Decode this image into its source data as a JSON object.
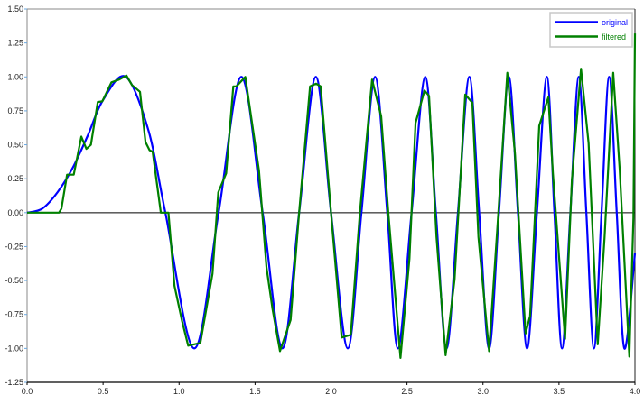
{
  "chart_data": {
    "type": "line",
    "title": "",
    "xlabel": "",
    "ylabel": "",
    "xlim": [
      0.0,
      4.0
    ],
    "ylim": [
      -1.25,
      1.5
    ],
    "xticks": [
      "0.0",
      "0.5",
      "1.0",
      "1.5",
      "2.0",
      "2.5",
      "3.0",
      "3.5",
      "4.0"
    ],
    "yticks": [
      "1.50",
      "1.25",
      "1.00",
      "0.75",
      "0.50",
      "0.25",
      "0.00",
      "-0.25",
      "-0.50",
      "-0.75",
      "-1.00",
      "-1.25"
    ],
    "grid": false,
    "zero_line": true,
    "legend": {
      "placement": "top-right",
      "entries": [
        "original",
        "filtered"
      ]
    },
    "series": [
      {
        "name": "original",
        "color": "#0000ff",
        "points": [
          [
            0,
            0
          ],
          [
            0.1,
            0.03
          ],
          [
            0.2,
            0.15
          ],
          [
            0.3,
            0.33
          ],
          [
            0.4,
            0.57
          ],
          [
            0.5,
            0.83
          ],
          [
            0.65,
            1.0
          ],
          [
            0.8,
            0.6
          ],
          [
            0.91,
            0
          ],
          [
            1.1,
            -1
          ],
          [
            1.26,
            0
          ],
          [
            1.41,
            1
          ],
          [
            1.55,
            0
          ],
          [
            1.68,
            -1
          ],
          [
            1.79,
            0
          ],
          [
            1.9,
            1
          ],
          [
            2.0,
            0
          ],
          [
            2.11,
            -1
          ],
          [
            2.2,
            0
          ],
          [
            2.29,
            1
          ],
          [
            2.37,
            0
          ],
          [
            2.44,
            -1
          ],
          [
            2.53,
            0
          ],
          [
            2.62,
            1
          ],
          [
            2.69,
            0
          ],
          [
            2.76,
            -1
          ],
          [
            2.835,
            0
          ],
          [
            2.91,
            1
          ],
          [
            2.975,
            0
          ],
          [
            3.04,
            -1
          ],
          [
            3.105,
            0
          ],
          [
            3.17,
            1
          ],
          [
            3.23,
            0
          ],
          [
            3.29,
            -1
          ],
          [
            3.355,
            0
          ],
          [
            3.42,
            1
          ],
          [
            3.47,
            0
          ],
          [
            3.52,
            -1
          ],
          [
            3.575,
            0
          ],
          [
            3.63,
            1
          ],
          [
            3.68,
            0
          ],
          [
            3.73,
            -1
          ],
          [
            3.78,
            0
          ],
          [
            3.83,
            1
          ],
          [
            3.88,
            0
          ],
          [
            3.93,
            -1
          ],
          [
            4.0,
            -0.3
          ]
        ]
      },
      {
        "name": "filtered",
        "color": "#008000",
        "points": [
          [
            0,
            0
          ],
          [
            0.21,
            0
          ],
          [
            0.226,
            0.03
          ],
          [
            0.263,
            0.28
          ],
          [
            0.307,
            0.28
          ],
          [
            0.357,
            0.56
          ],
          [
            0.39,
            0.47
          ],
          [
            0.42,
            0.5
          ],
          [
            0.465,
            0.815
          ],
          [
            0.495,
            0.82
          ],
          [
            0.555,
            0.96
          ],
          [
            0.605,
            0.98
          ],
          [
            0.654,
            1.01
          ],
          [
            0.69,
            0.94
          ],
          [
            0.743,
            0.89
          ],
          [
            0.779,
            0.52
          ],
          [
            0.806,
            0.46
          ],
          [
            0.826,
            0.45
          ],
          [
            0.88,
            0
          ],
          [
            0.93,
            0
          ],
          [
            0.97,
            -0.54
          ],
          [
            1.02,
            -0.8
          ],
          [
            1.06,
            -0.98
          ],
          [
            1.14,
            -0.96
          ],
          [
            1.22,
            -0.45
          ],
          [
            1.258,
            0.15
          ],
          [
            1.31,
            0.29
          ],
          [
            1.357,
            0.93
          ],
          [
            1.377,
            0.93
          ],
          [
            1.436,
            1.0
          ],
          [
            1.526,
            0.31
          ],
          [
            1.575,
            -0.4
          ],
          [
            1.615,
            -0.71
          ],
          [
            1.664,
            -1.02
          ],
          [
            1.734,
            -0.79
          ],
          [
            1.79,
            0
          ],
          [
            1.862,
            0.93
          ],
          [
            1.902,
            0.95
          ],
          [
            1.932,
            0.93
          ],
          [
            2.0,
            0
          ],
          [
            2.07,
            -0.92
          ],
          [
            2.13,
            -0.9
          ],
          [
            2.19,
            0
          ],
          [
            2.27,
            0.98
          ],
          [
            2.33,
            0.71
          ],
          [
            2.377,
            0
          ],
          [
            2.457,
            -1.07
          ],
          [
            2.516,
            -0.34
          ],
          [
            2.556,
            0.66
          ],
          [
            2.615,
            0.9
          ],
          [
            2.645,
            0.86
          ],
          [
            2.694,
            -0.18
          ],
          [
            2.754,
            -1.05
          ],
          [
            2.813,
            -0.49
          ],
          [
            2.883,
            0.87
          ],
          [
            2.93,
            0.81
          ],
          [
            2.97,
            -0.18
          ],
          [
            3.04,
            -1.02
          ],
          [
            3.1,
            -0.02
          ],
          [
            3.16,
            1.03
          ],
          [
            3.21,
            0.44
          ],
          [
            3.28,
            -0.89
          ],
          [
            3.31,
            -0.76
          ],
          [
            3.37,
            0.64
          ],
          [
            3.43,
            0.85
          ],
          [
            3.46,
            0.29
          ],
          [
            3.54,
            -0.93
          ],
          [
            3.585,
            0.24
          ],
          [
            3.645,
            1.06
          ],
          [
            3.695,
            0.51
          ],
          [
            3.755,
            -0.97
          ],
          [
            3.8,
            -0.18
          ],
          [
            3.857,
            1.03
          ],
          [
            3.9,
            0.31
          ],
          [
            3.963,
            -1.06
          ],
          [
            3.99,
            -0.04
          ],
          [
            4.0,
            1.32
          ]
        ]
      }
    ]
  }
}
